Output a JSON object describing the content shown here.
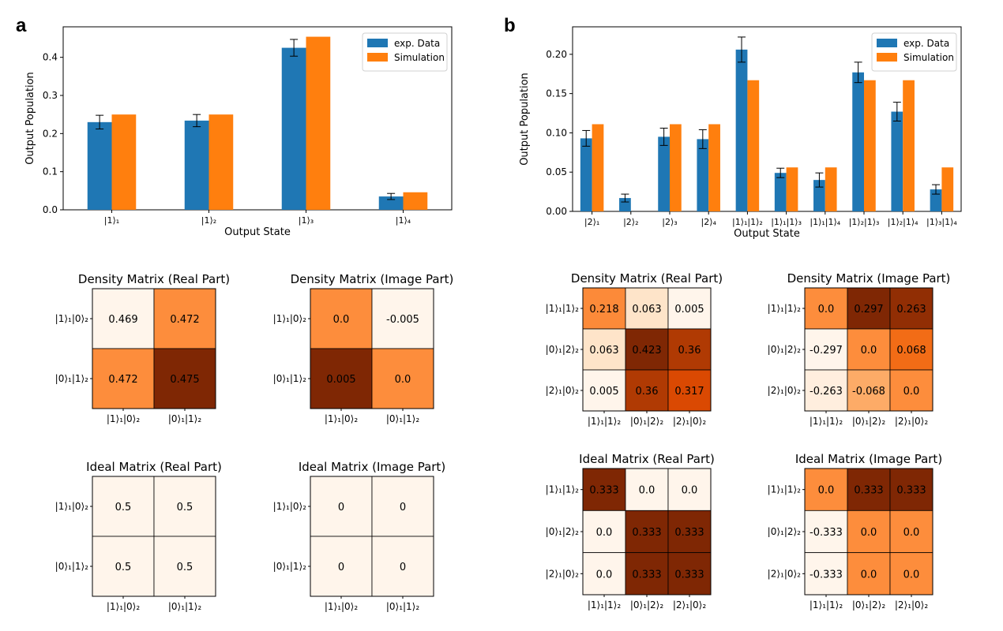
{
  "panels": {
    "a": "a",
    "b": "b"
  },
  "colors": {
    "exp": "#1f77b4",
    "sim": "#ff7f0e"
  },
  "chart_data": [
    {
      "id": "bar-a",
      "type": "bar",
      "categories": [
        "|1⟩₁",
        "|1⟩₂",
        "|1⟩₃",
        "|1⟩₄"
      ],
      "series": [
        {
          "name": "exp. Data",
          "values": [
            0.23,
            0.234,
            0.425,
            0.035
          ],
          "errors": [
            0.018,
            0.016,
            0.022,
            0.008
          ]
        },
        {
          "name": "Simulation",
          "values": [
            0.25,
            0.25,
            0.454,
            0.046
          ]
        }
      ],
      "xlabel": "Output State",
      "ylabel": "Output Population",
      "ylim": [
        0,
        0.48
      ],
      "yticks": [
        "0.0",
        "0.1",
        "0.2",
        "0.3",
        "0.4"
      ],
      "legend": "top-right",
      "grid": false
    },
    {
      "id": "bar-b",
      "type": "bar",
      "categories": [
        "|2⟩₁",
        "|2⟩₂",
        "|2⟩₃",
        "|2⟩₄",
        "|1⟩₁|1⟩₂",
        "|1⟩₁|1⟩₃",
        "|1⟩₁|1⟩₄",
        "|1⟩₂|1⟩₃",
        "|1⟩₂|1⟩₄",
        "|1⟩₃|1⟩₄"
      ],
      "series": [
        {
          "name": "exp. Data",
          "values": [
            0.093,
            0.017,
            0.095,
            0.092,
            0.206,
            0.049,
            0.04,
            0.177,
            0.127,
            0.028
          ],
          "errors": [
            0.01,
            0.005,
            0.011,
            0.012,
            0.016,
            0.006,
            0.009,
            0.013,
            0.012,
            0.006
          ]
        },
        {
          "name": "Simulation",
          "values": [
            0.111,
            0.0,
            0.111,
            0.111,
            0.167,
            0.056,
            0.056,
            0.167,
            0.167,
            0.056
          ]
        }
      ],
      "xlabel": "Output State",
      "ylabel": "Output Population",
      "ylim": [
        0,
        0.235
      ],
      "yticks": [
        "0.00",
        "0.05",
        "0.10",
        "0.15",
        "0.20"
      ],
      "legend": "top-right",
      "grid": false
    },
    {
      "id": "hm-a1",
      "type": "heatmap",
      "title": "Density Matrix (Real Part)",
      "rows": [
        "|1⟩₁|0⟩₂",
        "|0⟩₁|1⟩₂"
      ],
      "cols": [
        "|1⟩₁|0⟩₂",
        "|0⟩₁|1⟩₂"
      ],
      "labels": [
        [
          "0.469",
          "0.472"
        ],
        [
          "0.472",
          "0.475"
        ]
      ],
      "values": [
        [
          0.469,
          0.472
        ],
        [
          0.472,
          0.475
        ]
      ],
      "vrange": [
        0.469,
        0.475
      ]
    },
    {
      "id": "hm-a2",
      "type": "heatmap",
      "title": "Density Matrix (Image Part)",
      "rows": [
        "|1⟩₁|0⟩₂",
        "|0⟩₁|1⟩₂"
      ],
      "cols": [
        "|1⟩₁|0⟩₂",
        "|0⟩₁|1⟩₂"
      ],
      "labels": [
        [
          "0.0",
          "-0.005"
        ],
        [
          "0.005",
          "0.0"
        ]
      ],
      "values": [
        [
          0.0,
          -0.005
        ],
        [
          0.005,
          0.0
        ]
      ],
      "vrange": [
        -0.005,
        0.005
      ]
    },
    {
      "id": "hm-a3",
      "type": "heatmap",
      "title": "Ideal Matrix (Real Part)",
      "rows": [
        "|1⟩₁|0⟩₂",
        "|0⟩₁|1⟩₂"
      ],
      "cols": [
        "|1⟩₁|0⟩₂",
        "|0⟩₁|1⟩₂"
      ],
      "labels": [
        [
          "0.5",
          "0.5"
        ],
        [
          "0.5",
          "0.5"
        ]
      ],
      "values": [
        [
          0.5,
          0.5
        ],
        [
          0.5,
          0.5
        ]
      ],
      "vrange": [
        0.5,
        1.5
      ]
    },
    {
      "id": "hm-a4",
      "type": "heatmap",
      "title": "Ideal Matrix (Image Part)",
      "rows": [
        "|1⟩₁|0⟩₂",
        "|0⟩₁|1⟩₂"
      ],
      "cols": [
        "|1⟩₁|0⟩₂",
        "|0⟩₁|1⟩₂"
      ],
      "labels": [
        [
          "0",
          "0"
        ],
        [
          "0",
          "0"
        ]
      ],
      "values": [
        [
          0,
          0
        ],
        [
          0,
          0
        ]
      ],
      "vrange": [
        0,
        1
      ]
    },
    {
      "id": "hm-b1",
      "type": "heatmap",
      "title": "Density Matrix (Real Part)",
      "rows": [
        "|1⟩₁|1⟩₂",
        "|0⟩₁|2⟩₂",
        "|2⟩₁|0⟩₂"
      ],
      "cols": [
        "|1⟩₁|1⟩₂",
        "|0⟩₁|2⟩₂",
        "|2⟩₁|0⟩₂"
      ],
      "labels": [
        [
          "0.218",
          "0.063",
          "0.005"
        ],
        [
          "0.063",
          "0.423",
          "0.36"
        ],
        [
          "0.005",
          "0.36",
          "0.317"
        ]
      ],
      "values": [
        [
          0.218,
          0.063,
          0.005
        ],
        [
          0.063,
          0.423,
          0.36
        ],
        [
          0.005,
          0.36,
          0.317
        ]
      ],
      "vrange": [
        0.005,
        0.423
      ]
    },
    {
      "id": "hm-b2",
      "type": "heatmap",
      "title": "Density Matrix (Image Part)",
      "rows": [
        "|1⟩₁|1⟩₂",
        "|0⟩₁|2⟩₂",
        "|2⟩₁|0⟩₂"
      ],
      "cols": [
        "|1⟩₁|1⟩₂",
        "|0⟩₁|2⟩₂",
        "|2⟩₁|0⟩₂"
      ],
      "labels": [
        [
          "0.0",
          "0.297",
          "0.263"
        ],
        [
          "-0.297",
          "0.0",
          "0.068"
        ],
        [
          "-0.263",
          "-0.068",
          "0.0"
        ]
      ],
      "values": [
        [
          0.0,
          0.297,
          0.263
        ],
        [
          -0.297,
          0.0,
          0.068
        ],
        [
          -0.263,
          -0.068,
          0.0
        ]
      ],
      "vrange": [
        -0.297,
        0.297
      ]
    },
    {
      "id": "hm-b3",
      "type": "heatmap",
      "title": "Ideal Matrix (Real Part)",
      "rows": [
        "|1⟩₁|1⟩₂",
        "|0⟩₁|2⟩₂",
        "|2⟩₁|0⟩₂"
      ],
      "cols": [
        "|1⟩₁|1⟩₂",
        "|0⟩₁|2⟩₂",
        "|2⟩₁|0⟩₂"
      ],
      "labels": [
        [
          "0.333",
          "0.0",
          "0.0"
        ],
        [
          "0.0",
          "0.333",
          "0.333"
        ],
        [
          "0.0",
          "0.333",
          "0.333"
        ]
      ],
      "values": [
        [
          0.333,
          0.0,
          0.0
        ],
        [
          0.0,
          0.333,
          0.333
        ],
        [
          0.0,
          0.333,
          0.333
        ]
      ],
      "vrange": [
        0.0,
        0.333
      ]
    },
    {
      "id": "hm-b4",
      "type": "heatmap",
      "title": "Ideal Matrix (Image Part)",
      "rows": [
        "|1⟩₁|1⟩₂",
        "|0⟩₁|2⟩₂",
        "|2⟩₁|0⟩₂"
      ],
      "cols": [
        "|1⟩₁|1⟩₂",
        "|0⟩₁|2⟩₂",
        "|2⟩₁|0⟩₂"
      ],
      "labels": [
        [
          "0.0",
          "0.333",
          "0.333"
        ],
        [
          "-0.333",
          "0.0",
          "0.0"
        ],
        [
          "-0.333",
          "0.0",
          "0.0"
        ]
      ],
      "values": [
        [
          0.0,
          0.333,
          0.333
        ],
        [
          -0.333,
          0.0,
          0.0
        ],
        [
          -0.333,
          0.0,
          0.0
        ]
      ],
      "vrange": [
        -0.333,
        0.333
      ]
    }
  ]
}
